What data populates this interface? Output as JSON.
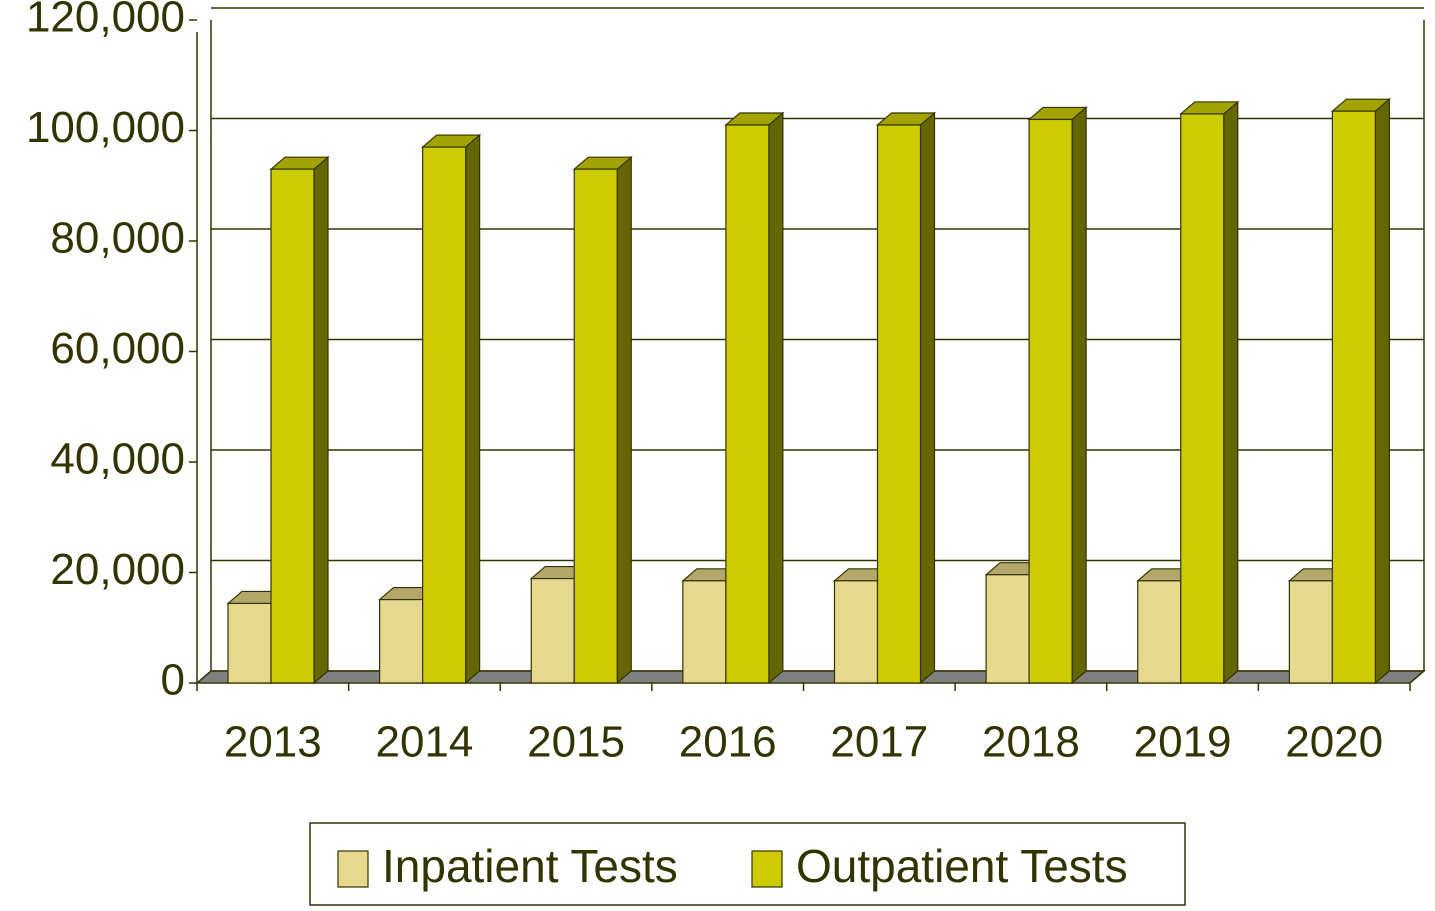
{
  "chart_data": {
    "type": "bar",
    "categories": [
      "2013",
      "2014",
      "2015",
      "2016",
      "2017",
      "2018",
      "2019",
      "2020"
    ],
    "series": [
      {
        "name": "Inpatient Tests",
        "color": "#e6d88c",
        "values": [
          14400,
          15100,
          18900,
          18500,
          18500,
          19600,
          18500,
          18500
        ]
      },
      {
        "name": "Outpatient Tests",
        "color": "#cccc00",
        "values": [
          93000,
          97000,
          93000,
          101000,
          101000,
          102000,
          103000,
          103500
        ]
      }
    ],
    "ylim": [
      0,
      120000
    ],
    "yticks": [
      0,
      {
        "value": 20000,
        "label": "20,000"
      },
      {
        "value": 40000,
        "label": "40,000"
      },
      {
        "value": 60000,
        "label": "60,000"
      },
      {
        "value": 80000,
        "label": "80,000"
      },
      {
        "value": 100000,
        "label": "100,000"
      },
      {
        "value": 120000,
        "label": "120,000"
      }
    ],
    "grid": true,
    "legend": "bottom"
  }
}
